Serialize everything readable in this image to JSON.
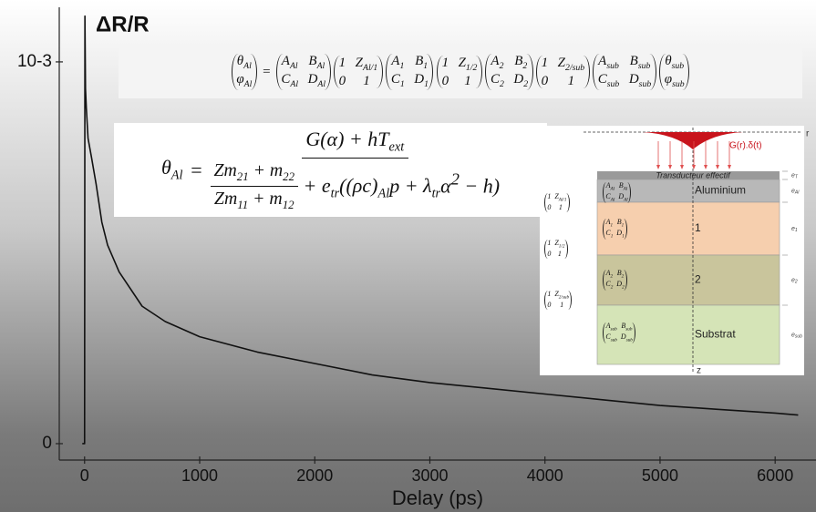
{
  "chart_data": {
    "type": "line",
    "ylabel": "ΔR/R",
    "xlabel": "Delay (ps)",
    "x": [
      -20,
      0,
      3,
      8,
      15,
      30,
      60,
      100,
      150,
      200,
      300,
      500,
      700,
      1000,
      1500,
      2000,
      2500,
      3000,
      3500,
      4000,
      4500,
      5000,
      5500,
      6000,
      6200
    ],
    "series": [
      {
        "color": "#111111",
        "values": [
          0,
          0,
          0.00112,
          0.00093,
          0.00088,
          0.0008,
          0.00075,
          0.00068,
          0.00058,
          0.00052,
          0.00045,
          0.00036,
          0.00032,
          0.00028,
          0.00024,
          0.00021,
          0.00018,
          0.00016,
          0.000145,
          0.00013,
          0.000115,
          0.0001,
          9e-05,
          8e-05,
          7.5e-05
        ]
      }
    ],
    "xlim": [
      -220,
      6355
    ],
    "xticks": [
      0,
      1000,
      2000,
      3000,
      4000,
      5000,
      6000
    ],
    "ylim": [
      -4.3e-05,
      0.001143
    ],
    "yticks": [
      0,
      {
        "value": 0.001,
        "label": "10-3"
      }
    ]
  },
  "matrix_equation": {
    "left": [
      [
        [
          "θ",
          "Al"
        ]
      ],
      [
        [
          "φ",
          "Al"
        ]
      ]
    ],
    "equals": "=",
    "right": [
      [
        [
          [
            "A",
            "Al"
          ],
          [
            "B",
            "Al"
          ]
        ],
        [
          [
            "C",
            "Al"
          ],
          [
            "D",
            "Al"
          ]
        ]
      ],
      [
        [
          "1",
          [
            "Z",
            "Al/1"
          ]
        ],
        [
          "0",
          "1"
        ]
      ],
      [
        [
          [
            "A",
            "1"
          ],
          [
            "B",
            "1"
          ]
        ],
        [
          [
            "C",
            "1"
          ],
          [
            "D",
            "1"
          ]
        ]
      ],
      [
        [
          "1",
          [
            "Z",
            "1/2"
          ]
        ],
        [
          "0",
          "1"
        ]
      ],
      [
        [
          [
            "A",
            "2"
          ],
          [
            "B",
            "2"
          ]
        ],
        [
          [
            "C",
            "2"
          ],
          [
            "D",
            "2"
          ]
        ]
      ],
      [
        [
          "1",
          [
            "Z",
            "2/sub"
          ]
        ],
        [
          "0",
          "1"
        ]
      ],
      [
        [
          [
            "A",
            "sub"
          ],
          [
            "B",
            "sub"
          ]
        ],
        [
          [
            "C",
            "sub"
          ],
          [
            "D",
            "sub"
          ]
        ]
      ],
      [
        [
          [
            "θ",
            "sub"
          ]
        ],
        [
          [
            "φ",
            "sub"
          ]
        ]
      ]
    ]
  },
  "heat_equation": {
    "lhs": [
      "θ",
      "Al"
    ],
    "equals": "=",
    "numerator": [
      "G(α) + h",
      [
        "T",
        "ext"
      ]
    ],
    "inner_numerator": [
      "Z",
      [
        "m",
        "21"
      ],
      " + ",
      [
        "m",
        "22"
      ]
    ],
    "inner_denominator": [
      "Z",
      [
        "m",
        "11"
      ],
      " + ",
      [
        "m",
        "12"
      ]
    ],
    "denominator_rest": [
      " + ",
      [
        "e",
        "tr"
      ],
      "(",
      [
        "(ρc)",
        "Al"
      ],
      "p + ",
      [
        "λ",
        "tr"
      ],
      "α",
      {
        "sup": "2"
      },
      " − h)"
    ]
  },
  "diagram": {
    "source_label": "G(r).δ(t)",
    "r_axis": "r",
    "z_axis": "z",
    "transducer": "Transducteur effectif",
    "layers": [
      "Aluminium",
      "1",
      "2",
      "Substrat"
    ],
    "thicknesses": [
      [
        "e",
        "T"
      ],
      [
        "e",
        "Al"
      ],
      [
        "e",
        "1"
      ],
      [
        "e",
        "2"
      ],
      [
        "e",
        "sub"
      ]
    ],
    "layer_matrices": [
      [
        [
          [
            "A",
            "Al"
          ],
          [
            "B",
            "Al"
          ]
        ],
        [
          [
            "C",
            "Al"
          ],
          [
            "D",
            "Al"
          ]
        ]
      ],
      [
        [
          [
            "A",
            "1"
          ],
          [
            "B",
            "1"
          ]
        ],
        [
          [
            "C",
            "1"
          ],
          [
            "D",
            "1"
          ]
        ]
      ],
      [
        [
          [
            "A",
            "2"
          ],
          [
            "B",
            "2"
          ]
        ],
        [
          [
            "C",
            "2"
          ],
          [
            "D",
            "2"
          ]
        ]
      ],
      [
        [
          [
            "A",
            "sub"
          ],
          [
            "B",
            "sub"
          ]
        ],
        [
          [
            "C",
            "sub"
          ],
          [
            "D",
            "sub"
          ]
        ]
      ]
    ],
    "interface_matrices": [
      [
        [
          "1",
          [
            "Z",
            "Al/1"
          ]
        ],
        [
          "0",
          "1"
        ]
      ],
      [
        [
          "1",
          [
            "Z",
            "1/2"
          ]
        ],
        [
          "0",
          "1"
        ]
      ],
      [
        [
          "1",
          [
            "Z",
            "2/sub"
          ]
        ],
        [
          "0",
          "1"
        ]
      ]
    ]
  }
}
